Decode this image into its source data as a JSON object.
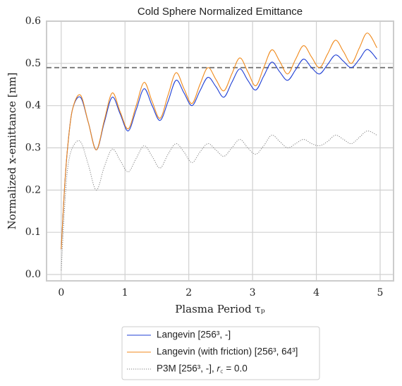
{
  "chart_data": {
    "type": "line",
    "title": "Cold Sphere Normalized Emittance",
    "xlabel": "Plasma Period τₚ",
    "ylabel": "Normalized x-emittance [nm]",
    "x": [
      0,
      0.05,
      0.1,
      0.175,
      0.3,
      0.425,
      0.55,
      0.675,
      0.8,
      0.925,
      1.05,
      1.175,
      1.3,
      1.425,
      1.55,
      1.675,
      1.8,
      1.925,
      2.05,
      2.175,
      2.3,
      2.425,
      2.55,
      2.675,
      2.8,
      2.925,
      3.05,
      3.175,
      3.3,
      3.425,
      3.55,
      3.675,
      3.8,
      3.925,
      4.05,
      4.175,
      4.3,
      4.425,
      4.55,
      4.675,
      4.8,
      4.95
    ],
    "series": [
      {
        "name": "Langevin [256³, -]",
        "color": "#1f3fd4",
        "style": "solid",
        "values": [
          0.06,
          0.2,
          0.3,
          0.39,
          0.42,
          0.36,
          0.295,
          0.36,
          0.42,
          0.38,
          0.34,
          0.39,
          0.44,
          0.4,
          0.365,
          0.41,
          0.46,
          0.43,
          0.4,
          0.435,
          0.467,
          0.445,
          0.42,
          0.455,
          0.487,
          0.46,
          0.437,
          0.47,
          0.503,
          0.48,
          0.46,
          0.485,
          0.51,
          0.49,
          0.475,
          0.497,
          0.52,
          0.505,
          0.49,
          0.51,
          0.533,
          0.51
        ]
      },
      {
        "name": "Langevin (with friction) [256³, 64³]",
        "color": "#f08a1c",
        "style": "solid",
        "values": [
          0.06,
          0.2,
          0.3,
          0.39,
          0.425,
          0.36,
          0.295,
          0.365,
          0.43,
          0.385,
          0.345,
          0.4,
          0.455,
          0.41,
          0.37,
          0.425,
          0.478,
          0.44,
          0.405,
          0.45,
          0.49,
          0.462,
          0.435,
          0.475,
          0.513,
          0.48,
          0.447,
          0.49,
          0.532,
          0.505,
          0.475,
          0.51,
          0.542,
          0.515,
          0.49,
          0.522,
          0.555,
          0.528,
          0.5,
          0.537,
          0.572,
          0.537
        ]
      },
      {
        "name": "P3M [256³, -], 𝑟꜀ = 0.0",
        "color": "#808080",
        "style": "dotted",
        "values": [
          0.01,
          0.15,
          0.25,
          0.3,
          0.315,
          0.26,
          0.2,
          0.255,
          0.297,
          0.27,
          0.243,
          0.275,
          0.305,
          0.28,
          0.252,
          0.285,
          0.31,
          0.29,
          0.265,
          0.29,
          0.31,
          0.295,
          0.28,
          0.3,
          0.32,
          0.3,
          0.285,
          0.305,
          0.33,
          0.315,
          0.3,
          0.31,
          0.32,
          0.31,
          0.305,
          0.315,
          0.33,
          0.32,
          0.31,
          0.325,
          0.34,
          0.33
        ]
      }
    ],
    "hline": 0.49,
    "xlim": [
      -0.23,
      5.21
    ],
    "ylim": [
      -0.015,
      0.6
    ],
    "xticks": [
      0,
      1,
      2,
      3,
      4,
      5
    ],
    "yticks": [
      {
        "value": 0,
        "label": "0.0"
      },
      0.1,
      0.2,
      0.3,
      0.4,
      0.5,
      {
        "value": 0.6,
        "label": "0.6"
      }
    ],
    "grid": true,
    "legend": "below"
  }
}
